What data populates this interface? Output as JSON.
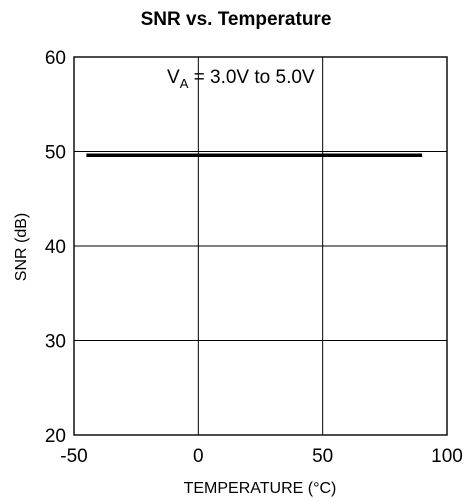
{
  "chart_data": {
    "type": "line",
    "title": "SNR vs. Temperature",
    "xlabel": "TEMPERATURE (°C)",
    "ylabel": "SNR (dB)",
    "xlim": [
      -50,
      100
    ],
    "ylim": [
      20,
      60
    ],
    "xticks": [
      -50,
      0,
      50,
      100
    ],
    "yticks": [
      20,
      30,
      40,
      50,
      60
    ],
    "xtick_labels": [
      "-50",
      "0",
      "50",
      "100"
    ],
    "ytick_labels": [
      "20",
      "30",
      "40",
      "50",
      "60"
    ],
    "grid": true,
    "annotation": {
      "main": "V",
      "sub": "A",
      "rest": " = 3.0V to 5.0V"
    },
    "series": [
      {
        "x": [
          -45,
          90
        ],
        "y": [
          49.6,
          49.6
        ],
        "color": "#000000"
      }
    ]
  }
}
